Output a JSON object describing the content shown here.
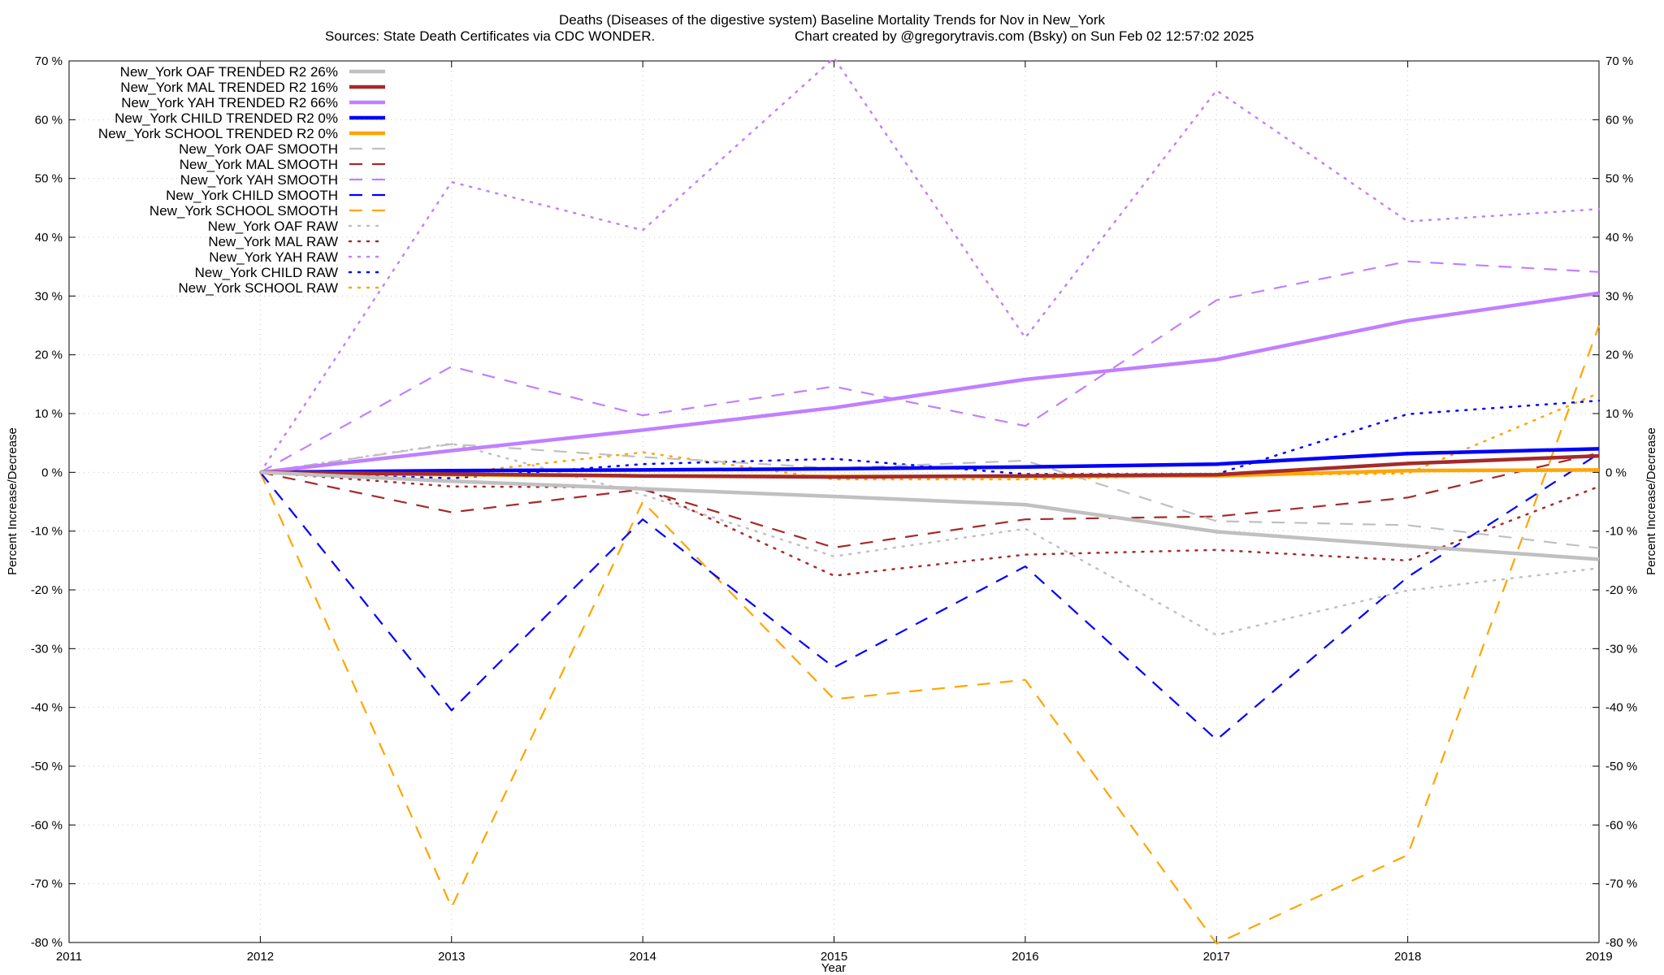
{
  "chart_data": {
    "type": "line",
    "title_line1": "Deaths (Diseases of the digestive system)  Baseline Mortality Trends for Nov in New_York",
    "title_line2_left": "Sources: State Death Certificates via CDC WONDER.",
    "title_line2_right": "Chart created by @gregorytravis.com (Bsky) on Sun Feb 02 12:57:02 2025",
    "xlabel": "Year",
    "ylabel_left": "Percent Increase/Decrease",
    "ylabel_right": "Percent Increase/Decrease",
    "xlim": [
      2011,
      2019
    ],
    "ylim": [
      -80,
      70
    ],
    "x_ticks": [
      2011,
      2012,
      2013,
      2014,
      2015,
      2016,
      2017,
      2018,
      2019
    ],
    "x_tick_labels": [
      "2011",
      "2012",
      "2013",
      "2014",
      "2015",
      "2016",
      "2017",
      "2018",
      "2019"
    ],
    "y_ticks": [
      70,
      60,
      50,
      40,
      30,
      20,
      10,
      0,
      -10,
      -20,
      -30,
      -40,
      -50,
      -60,
      -70,
      -80
    ],
    "y_tick_labels": [
      "70 %",
      "60 %",
      "50 %",
      "40 %",
      "30 %",
      "20 %",
      "10 %",
      "0 %",
      "-10 %",
      "-20 %",
      "-30 %",
      "-40 %",
      "-50 %",
      "-60 %",
      "-70 %",
      "-80 %"
    ],
    "grid": true,
    "legend_position": "top-left",
    "x": [
      2012,
      2013,
      2014,
      2015,
      2016,
      2017,
      2018,
      2019
    ],
    "series": [
      {
        "name": "New_York OAF TRENDED R2  26%",
        "style": "solid",
        "color": "#c0c0c0",
        "values": [
          0,
          -1.5,
          -2.8,
          -4.1,
          -5.5,
          -10.1,
          -12.5,
          -14.8
        ]
      },
      {
        "name": "New_York MAL TRENDED R2  16%",
        "style": "solid",
        "color": "#a52a2a",
        "values": [
          0,
          -0.3,
          -0.6,
          -0.8,
          -0.6,
          -0.4,
          1.5,
          2.8
        ]
      },
      {
        "name": "New_York YAH TRENDED R2  66%",
        "style": "solid",
        "color": "#c080ff",
        "values": [
          0,
          3.7,
          7.2,
          11.0,
          15.8,
          19.2,
          25.8,
          30.5
        ]
      },
      {
        "name": "New_York CHILD TRENDED R2   0%",
        "style": "solid",
        "color": "#0000ff",
        "values": [
          0,
          0.3,
          0.4,
          0.6,
          0.9,
          1.4,
          3.2,
          4.0
        ]
      },
      {
        "name": "New_York SCHOOL TRENDED R2   0%",
        "style": "solid",
        "color": "#ffa500",
        "values": [
          0,
          -0.4,
          -0.6,
          -0.7,
          -0.7,
          -0.6,
          0.3,
          0.4
        ]
      },
      {
        "name": "New_York OAF SMOOTH",
        "style": "dashed",
        "color": "#c0c0c0",
        "values": [
          0,
          4.8,
          2.6,
          0.7,
          2.0,
          -8.3,
          -9.0,
          -12.9
        ]
      },
      {
        "name": "New_York MAL SMOOTH",
        "style": "dashed",
        "color": "#a52a2a",
        "values": [
          0,
          -6.8,
          -2.9,
          -12.8,
          -8.0,
          -7.5,
          -4.3,
          3.3
        ]
      },
      {
        "name": "New_York YAH SMOOTH",
        "style": "dashed",
        "color": "#c080ff",
        "values": [
          0,
          18.0,
          9.7,
          14.6,
          7.9,
          29.3,
          35.9,
          34.1
        ]
      },
      {
        "name": "New_York CHILD SMOOTH",
        "style": "dashed",
        "color": "#0000ff",
        "values": [
          0,
          -40.5,
          -8.0,
          -33.2,
          -16.0,
          -45.5,
          -17.8,
          3.2
        ]
      },
      {
        "name": "New_York SCHOOL SMOOTH",
        "style": "dashed",
        "color": "#ffa500",
        "values": [
          0,
          -74.0,
          -5.0,
          -38.6,
          -35.3,
          -80.2,
          -65.1,
          25.0
        ]
      },
      {
        "name": "New_York OAF RAW",
        "style": "dotted",
        "color": "#c0c0c0",
        "values": [
          0,
          4.9,
          -3.8,
          -14.3,
          -9.6,
          -27.7,
          -20.1,
          -16.3
        ]
      },
      {
        "name": "New_York MAL RAW",
        "style": "dotted",
        "color": "#a52a2a",
        "values": [
          0,
          -2.4,
          -2.6,
          -17.6,
          -14.0,
          -13.2,
          -15.0,
          -2.4
        ]
      },
      {
        "name": "New_York YAH RAW",
        "style": "dotted",
        "color": "#c080ff",
        "values": [
          0,
          49.4,
          41.2,
          70.5,
          22.9,
          65.0,
          42.7,
          44.8
        ]
      },
      {
        "name": "New_York CHILD RAW",
        "style": "dotted",
        "color": "#0000ff",
        "values": [
          0,
          -1.0,
          1.4,
          2.3,
          -0.3,
          -0.3,
          9.9,
          12.2
        ]
      },
      {
        "name": "New_York SCHOOL RAW",
        "style": "dotted",
        "color": "#ffa500",
        "values": [
          0,
          -0.2,
          3.4,
          -1.2,
          -1.2,
          -0.5,
          -0.2,
          13.5
        ]
      }
    ]
  }
}
